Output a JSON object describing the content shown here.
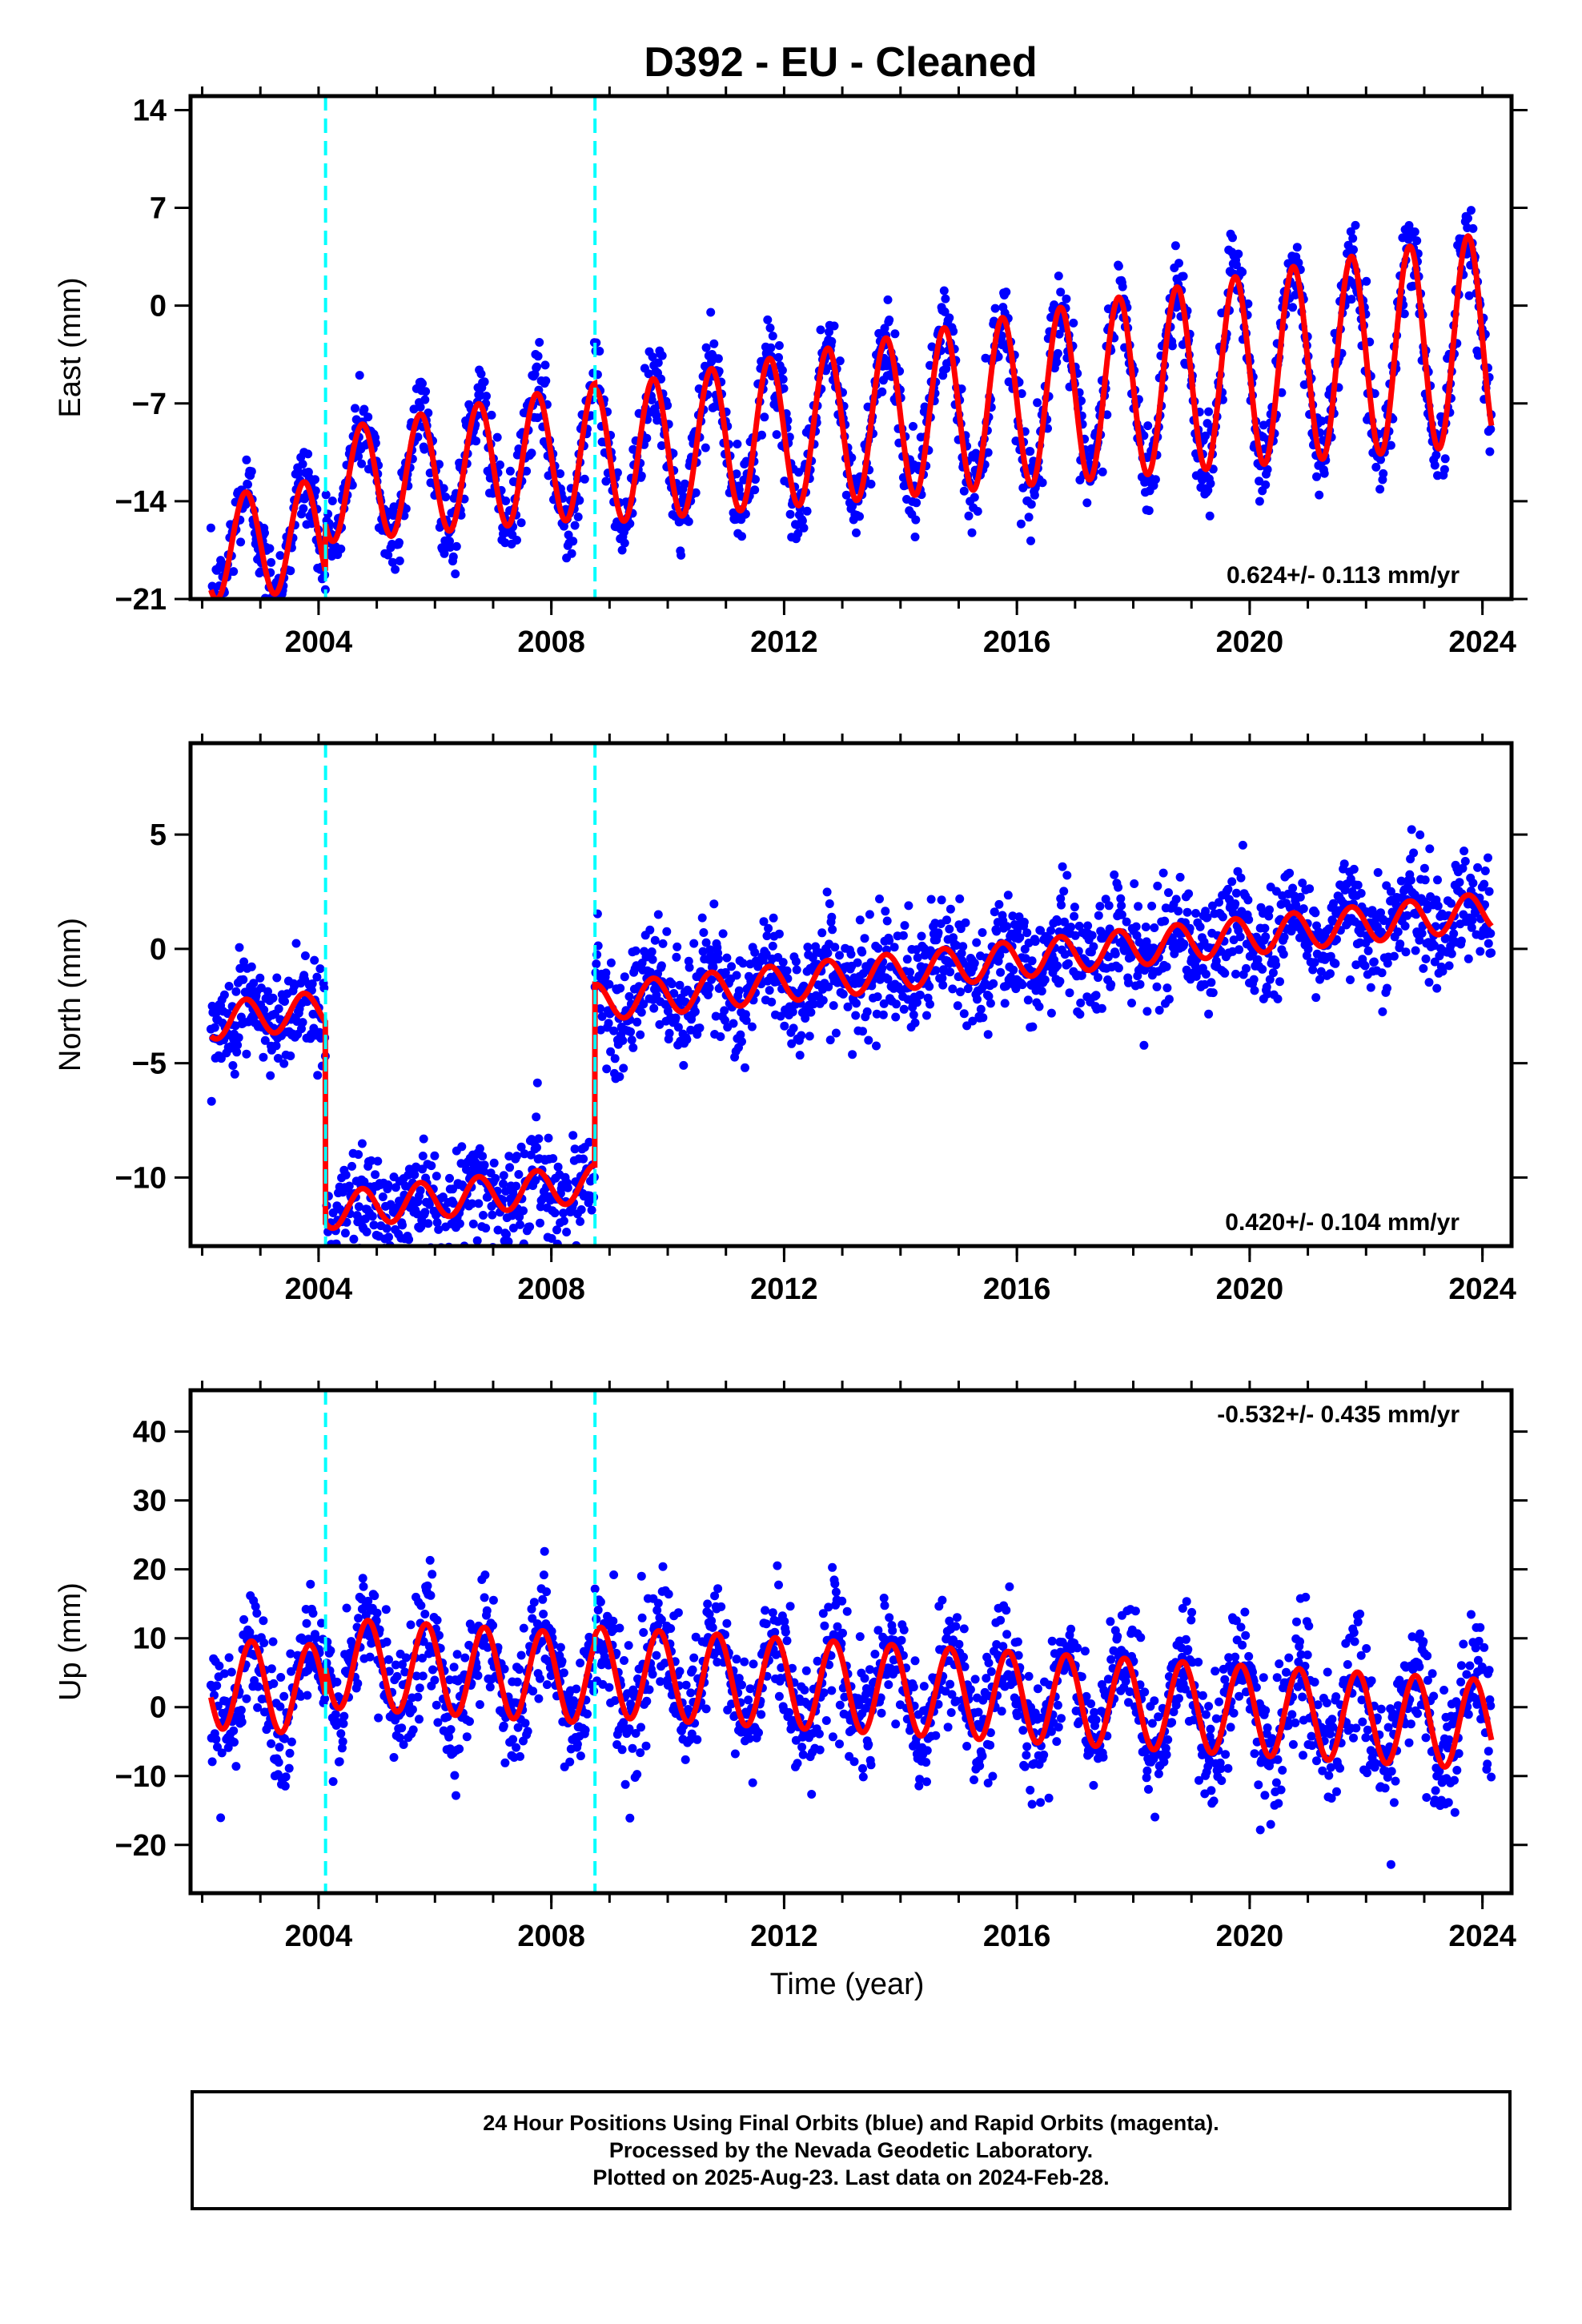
{
  "title": "D392  - EU - Cleaned",
  "x_axis_label": "Time (year)",
  "footer": {
    "line1": "24 Hour Positions Using Final Orbits (blue) and Rapid Orbits (magenta).",
    "line2": "Processed by the Nevada Geodetic Laboratory.",
    "line3": "Plotted on 2025-Aug-23. Last data on 2024-Feb-28."
  },
  "colors": {
    "data_points": "#0000ff",
    "model_fit": "#ff0000",
    "event_lines": "#00ffff",
    "frame": "#000000"
  },
  "chart_data": [
    {
      "type": "scatter",
      "ylabel": "East (mm)",
      "xlim": [
        2001.8,
        2024.5
      ],
      "ylim": [
        -21,
        15
      ],
      "xticks": [
        2004,
        2008,
        2012,
        2016,
        2020,
        2024
      ],
      "yticks": [
        -21,
        -14,
        -7,
        0,
        7,
        14
      ],
      "rate_text": "0.624+/- 0.113 mm/yr",
      "rate_position": "bottom-right",
      "event_lines_x": [
        2004.12,
        2008.75
      ],
      "data_span": [
        2002.15,
        2024.16
      ],
      "offsets": [
        [
          2002.15,
          -12.0
        ],
        [
          2004.12,
          3.4
        ],
        [
          2008.75,
          -0.4
        ]
      ],
      "trend_mm_per_yr": 0.55,
      "seasonal": {
        "amplitude": 3.6,
        "phase_year": 0.5,
        "amp_growth": 0.05
      },
      "scatter_sd": 1.6
    },
    {
      "type": "scatter",
      "ylabel": "North (mm)",
      "xlim": [
        2001.8,
        2024.5
      ],
      "ylim": [
        -13,
        9
      ],
      "xticks": [
        2004,
        2008,
        2012,
        2016,
        2020,
        2024
      ],
      "yticks": [
        -10,
        -5,
        0,
        5
      ],
      "rate_text": "0.420+/- 0.104 mm/yr",
      "rate_position": "bottom-right",
      "event_lines_x": [
        2004.12,
        2008.75
      ],
      "data_span": [
        2002.15,
        2024.16
      ],
      "offsets": [
        [
          2002.15,
          -0.6
        ],
        [
          2004.12,
          -8.8
        ],
        [
          2008.75,
          7.9
        ]
      ],
      "trend_mm_per_yr": 0.26,
      "seasonal": {
        "amplitude": 0.8,
        "phase_year": 0.5,
        "amp_growth": 0.0
      },
      "scatter_sd": 1.2
    },
    {
      "type": "scatter",
      "ylabel": "Up (mm)",
      "xlim": [
        2001.8,
        2024.5
      ],
      "ylim": [
        -27,
        46
      ],
      "xticks": [
        2004,
        2008,
        2012,
        2016,
        2020,
        2024
      ],
      "yticks": [
        -20,
        -10,
        0,
        10,
        20,
        30,
        40
      ],
      "rate_text": "-0.532+/- 0.435 mm/yr",
      "rate_position": "top-right",
      "event_lines_x": [
        2004.12,
        2008.75
      ],
      "data_span": [
        2002.15,
        2024.16
      ],
      "offsets": [
        [
          2002.15,
          -1.5
        ],
        [
          2004.12,
          4.0
        ],
        [
          2008.75,
          1.0
        ]
      ],
      "trend_mm_per_yr": -0.5,
      "seasonal": {
        "amplitude": 6.5,
        "phase_year": 0.6,
        "amp_growth": 0.0
      },
      "scatter_sd": 4.5
    }
  ]
}
